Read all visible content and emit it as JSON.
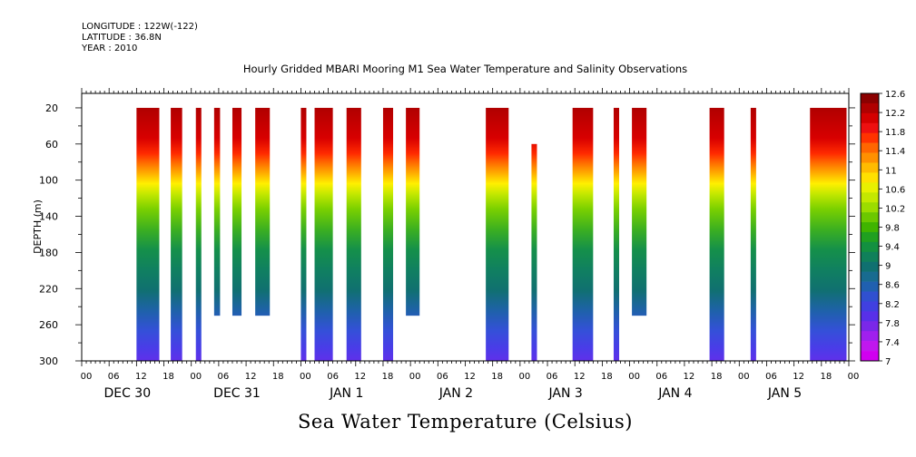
{
  "header": {
    "longitude": "LONGITUDE : 122W(-122)",
    "latitude": "LATITUDE : 36.8N",
    "year": "YEAR : 2010"
  },
  "chart_data": {
    "type": "heatmap",
    "title": "Hourly Gridded MBARI Mooring M1 Sea Water Temperature and Salinity Observations",
    "bottom_title": "Sea Water Temperature (Celsius)",
    "ylabel": "DEPTH (m)",
    "ylim": [
      300,
      4
    ],
    "y_ticks": [
      20,
      60,
      100,
      140,
      180,
      220,
      260,
      300
    ],
    "x_range_hours": [
      0,
      168
    ],
    "x_hour_labels": [
      "00",
      "06",
      "12",
      "18",
      "00",
      "06",
      "12",
      "18",
      "00",
      "06",
      "12",
      "18",
      "00",
      "06",
      "12",
      "18",
      "00",
      "06",
      "12",
      "18",
      "00",
      "06",
      "12",
      "18",
      "00",
      "06",
      "12",
      "18",
      "00"
    ],
    "x_day_labels": [
      "DEC 30",
      "DEC 31",
      "JAN  1",
      "JAN  2",
      "JAN  3",
      "JAN  4",
      "JAN  5"
    ],
    "colorbar": {
      "ticks": [
        "12.6",
        "12.2",
        "11.8",
        "11.4",
        "11",
        "10.6",
        "10.2",
        "9.8",
        "9.4",
        "9",
        "8.6",
        "8.2",
        "7.8",
        "7.4",
        "7"
      ],
      "colors": [
        "#8b0000",
        "#b00000",
        "#d40000",
        "#ee1010",
        "#ff3300",
        "#ff6600",
        "#ff9000",
        "#ffbb00",
        "#ffe000",
        "#e8f000",
        "#c4e800",
        "#9cdc00",
        "#6cc800",
        "#40b400",
        "#20a020",
        "#139040",
        "#10805a",
        "#107070",
        "#186b90",
        "#2060b0",
        "#3050d0",
        "#4040e0",
        "#5830e8",
        "#7a28e8",
        "#a020ee",
        "#c018ee",
        "#d000f0"
      ],
      "min": 7,
      "max": 12.6
    },
    "segments": [
      {
        "x0": 12,
        "x1": 17,
        "z0": 20,
        "z1": 300
      },
      {
        "x0": 19.5,
        "x1": 22,
        "z0": 20,
        "z1": 300
      },
      {
        "x0": 25,
        "x1": 26.2,
        "z0": 20,
        "z1": 300
      },
      {
        "x0": 29,
        "x1": 30.3,
        "z0": 20,
        "z1": 250
      },
      {
        "x0": 33,
        "x1": 35,
        "z0": 20,
        "z1": 250
      },
      {
        "x0": 38,
        "x1": 41.2,
        "z0": 20,
        "z1": 250
      },
      {
        "x0": 48,
        "x1": 49.2,
        "z0": 20,
        "z1": 300
      },
      {
        "x0": 51,
        "x1": 55,
        "z0": 20,
        "z1": 300
      },
      {
        "x0": 58,
        "x1": 61.2,
        "z0": 20,
        "z1": 300
      },
      {
        "x0": 66,
        "x1": 68.2,
        "z0": 20,
        "z1": 300
      },
      {
        "x0": 71,
        "x1": 74,
        "z0": 20,
        "z1": 250
      },
      {
        "x0": 88.5,
        "x1": 93.5,
        "z0": 20,
        "z1": 300
      },
      {
        "x0": 98.5,
        "x1": 99.7,
        "z0": 60,
        "z1": 300
      },
      {
        "x0": 107.5,
        "x1": 112,
        "z0": 20,
        "z1": 300
      },
      {
        "x0": 116.5,
        "x1": 117.7,
        "z0": 20,
        "z1": 300
      },
      {
        "x0": 120.5,
        "x1": 123.7,
        "z0": 20,
        "z1": 250
      },
      {
        "x0": 137.5,
        "x1": 140.7,
        "z0": 20,
        "z1": 300
      },
      {
        "x0": 146.5,
        "x1": 147.7,
        "z0": 20,
        "z1": 300
      },
      {
        "x0": 159.5,
        "x1": 167.5,
        "z0": 20,
        "z1": 300
      }
    ]
  }
}
